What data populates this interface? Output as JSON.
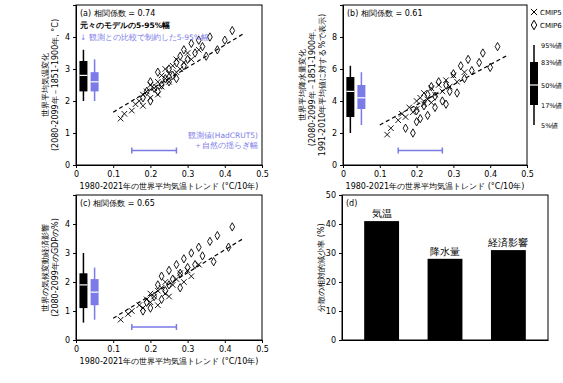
{
  "chart_data": [
    {
      "type": "scatter",
      "title": "(a) 相関係数 = 0.74",
      "x_label": "1980-2021年の世界平均気温トレンド (°C/10年)",
      "y_label": [
        "世界平均気温変化",
        "(2080-2099年－1851-1900年, °C)"
      ],
      "xlim": [
        0,
        0.5
      ],
      "xticks": [
        0,
        0.1,
        0.2,
        0.3,
        0.4,
        0.5
      ],
      "ylim": [
        0,
        5
      ],
      "yticks": [
        0,
        1,
        2,
        3,
        4
      ],
      "series": [
        {
          "marker": "x",
          "color": "#000000",
          "x": [
            0.12,
            0.13,
            0.15,
            0.16,
            0.17,
            0.18,
            0.18,
            0.19,
            0.2,
            0.2,
            0.21,
            0.22,
            0.22,
            0.23,
            0.23,
            0.24,
            0.24,
            0.25,
            0.25,
            0.26,
            0.27,
            0.27,
            0.28,
            0.29,
            0.3,
            0.31,
            0.33
          ],
          "values": [
            1.45,
            1.6,
            1.7,
            1.9,
            2.0,
            2.2,
            1.85,
            2.3,
            2.1,
            2.5,
            2.4,
            2.6,
            2.2,
            2.8,
            2.45,
            2.7,
            3.0,
            2.6,
            2.85,
            3.1,
            2.9,
            3.3,
            3.0,
            3.2,
            3.5,
            3.3,
            3.6
          ]
        },
        {
          "marker": "diamond",
          "color": "#000000",
          "x": [
            0.18,
            0.19,
            0.2,
            0.2,
            0.21,
            0.22,
            0.22,
            0.23,
            0.24,
            0.25,
            0.25,
            0.26,
            0.27,
            0.27,
            0.28,
            0.29,
            0.29,
            0.3,
            0.31,
            0.32,
            0.33,
            0.34,
            0.35,
            0.36,
            0.38,
            0.4,
            0.42
          ],
          "values": [
            2.1,
            2.3,
            2.0,
            2.6,
            2.4,
            2.3,
            2.9,
            2.5,
            2.7,
            3.0,
            2.6,
            2.8,
            3.2,
            2.7,
            3.4,
            3.1,
            3.6,
            3.3,
            3.8,
            3.5,
            3.9,
            3.7,
            3.4,
            4.0,
            3.6,
            3.9,
            4.2
          ]
        }
      ],
      "fit_line": {
        "x": [
          0.1,
          0.45
        ],
        "y": [
          1.65,
          4.1
        ],
        "line_style": "dashed"
      },
      "boxes": [
        {
          "x": 0.02,
          "color": "#000000",
          "values": [
            2.0,
            2.3,
            2.8,
            3.25,
            3.6
          ]
        },
        {
          "x": 0.05,
          "color": "#7b7be8",
          "values": [
            2.0,
            2.3,
            2.6,
            2.9,
            3.3
          ]
        }
      ],
      "obs_range": {
        "x": [
          0.15,
          0.27
        ],
        "y": 0.45,
        "color": "#7b7be8"
      },
      "annotations": [
        {
          "text": "元々のモデルの5-95%幅",
          "color": "#000000"
        },
        {
          "text": "↓ 観測との比較で制約した5-95%幅",
          "color": "#7b7be8"
        },
        {
          "text": "観測値(HadCRUT5)",
          "color": "#7b7be8"
        },
        {
          "text": "＋自然の揺らぎ幅",
          "color": "#7b7be8"
        }
      ]
    },
    {
      "type": "scatter",
      "title": "(b) 相関係数 = 0.61",
      "x_label": "1980-2021年の世界平均気温トレンド (°C/10年)",
      "y_label": [
        "世界平均降水量変化",
        "(2080-2099年－1851-1900年、",
        "1991-2010年平均値に対する%で表示)"
      ],
      "xlim": [
        0,
        0.5
      ],
      "xticks": [
        0,
        0.1,
        0.2,
        0.3,
        0.4,
        0.5
      ],
      "ylim": [
        0,
        10
      ],
      "yticks": [
        0,
        2,
        4,
        6,
        8
      ],
      "legend": "right",
      "series": [
        {
          "name": "CMIP5",
          "marker": "x",
          "color": "#000000",
          "x": [
            0.12,
            0.13,
            0.15,
            0.16,
            0.17,
            0.18,
            0.19,
            0.2,
            0.2,
            0.21,
            0.22,
            0.22,
            0.23,
            0.24,
            0.24,
            0.25,
            0.26,
            0.27,
            0.28,
            0.29,
            0.3,
            0.31,
            0.33
          ],
          "values": [
            1.9,
            2.3,
            2.8,
            3.2,
            3.0,
            3.6,
            3.3,
            4.0,
            3.5,
            4.2,
            3.8,
            4.5,
            4.1,
            4.8,
            3.9,
            4.4,
            5.0,
            4.6,
            5.3,
            4.9,
            5.6,
            5.2,
            5.8
          ]
        },
        {
          "name": "CMIP6",
          "marker": "diamond",
          "color": "#000000",
          "x": [
            0.17,
            0.19,
            0.2,
            0.2,
            0.21,
            0.22,
            0.23,
            0.23,
            0.24,
            0.25,
            0.25,
            0.26,
            0.27,
            0.28,
            0.28,
            0.29,
            0.3,
            0.31,
            0.32,
            0.33,
            0.34,
            0.35,
            0.37,
            0.38,
            0.4,
            0.42
          ],
          "values": [
            2.3,
            2.0,
            2.7,
            3.4,
            2.9,
            3.7,
            4.4,
            3.1,
            4.9,
            3.6,
            4.3,
            5.2,
            4.0,
            5.0,
            3.8,
            4.6,
            5.7,
            4.5,
            6.2,
            5.4,
            6.6,
            5.9,
            6.4,
            7.0,
            6.1,
            7.4
          ]
        }
      ],
      "fit_line": {
        "x": [
          0.1,
          0.45
        ],
        "y": [
          2.5,
          6.9
        ],
        "line_style": "dashed"
      },
      "boxes": [
        {
          "x": 0.02,
          "color": "#000000",
          "values": [
            2.0,
            3.0,
            4.6,
            5.5,
            6.2
          ]
        },
        {
          "x": 0.05,
          "color": "#7b7be8",
          "values": [
            2.5,
            3.5,
            4.2,
            5.0,
            5.8
          ]
        }
      ],
      "obs_range": {
        "x": [
          0.15,
          0.27
        ],
        "y": 0.9,
        "color": "#7b7be8"
      },
      "box_legend": [
        "95%値",
        "83%値",
        "50%値",
        "17%値",
        "5%値"
      ]
    },
    {
      "type": "scatter",
      "title": "(c) 相関係数 = 0.65",
      "x_label": "1980-2021年の世界平均気温トレンド (°C/10年)",
      "y_label": [
        "世界の気候変動経済影響",
        "(2080-2099年のGDPの%)"
      ],
      "xlim": [
        0,
        0.5
      ],
      "xticks": [
        0,
        0.1,
        0.2,
        0.3,
        0.4,
        0.5
      ],
      "ylim": [
        0,
        5
      ],
      "yticks": [
        0,
        1,
        2,
        3,
        4
      ],
      "series": [
        {
          "marker": "x",
          "color": "#000000",
          "x": [
            0.12,
            0.14,
            0.15,
            0.17,
            0.18,
            0.19,
            0.2,
            0.2,
            0.21,
            0.22,
            0.22,
            0.23,
            0.24,
            0.24,
            0.25,
            0.26,
            0.27,
            0.28,
            0.29,
            0.3,
            0.31,
            0.33
          ],
          "values": [
            0.7,
            0.9,
            1.0,
            1.2,
            1.1,
            1.4,
            1.3,
            1.6,
            1.5,
            1.7,
            1.2,
            1.8,
            1.6,
            2.0,
            1.5,
            1.9,
            2.1,
            2.3,
            2.0,
            2.4,
            2.2,
            2.6
          ]
        },
        {
          "marker": "diamond",
          "color": "#000000",
          "x": [
            0.18,
            0.19,
            0.2,
            0.21,
            0.22,
            0.23,
            0.23,
            0.24,
            0.25,
            0.25,
            0.26,
            0.27,
            0.28,
            0.28,
            0.29,
            0.3,
            0.31,
            0.32,
            0.33,
            0.34,
            0.36,
            0.37,
            0.38,
            0.41,
            0.42
          ],
          "values": [
            1.0,
            1.3,
            1.1,
            1.5,
            1.9,
            1.4,
            2.2,
            1.7,
            2.4,
            1.9,
            2.1,
            2.6,
            1.8,
            2.3,
            2.8,
            2.5,
            3.0,
            2.6,
            3.2,
            2.9,
            3.4,
            2.7,
            3.6,
            3.2,
            3.9
          ]
        }
      ],
      "fit_line": {
        "x": [
          0.1,
          0.45
        ],
        "y": [
          0.75,
          3.5
        ],
        "line_style": "dashed"
      },
      "boxes": [
        {
          "x": 0.02,
          "color": "#000000",
          "values": [
            0.6,
            1.1,
            1.9,
            2.3,
            3.0
          ]
        },
        {
          "x": 0.05,
          "color": "#7b7be8",
          "values": [
            0.7,
            1.2,
            1.65,
            2.1,
            2.5
          ]
        }
      ],
      "obs_range": {
        "x": [
          0.15,
          0.27
        ],
        "y": 0.45,
        "color": "#7b7be8"
      }
    },
    {
      "type": "bar",
      "title": "(d)",
      "y_label": "分散の相対的減少率 (%)",
      "categories": [
        "気温",
        "降水量",
        "経済影響"
      ],
      "values": [
        41,
        28,
        31
      ],
      "color": "#000000",
      "ylim": [
        0,
        50
      ],
      "yticks": [
        0,
        10,
        20,
        30,
        40,
        50
      ],
      "tick_labels": "y"
    }
  ]
}
